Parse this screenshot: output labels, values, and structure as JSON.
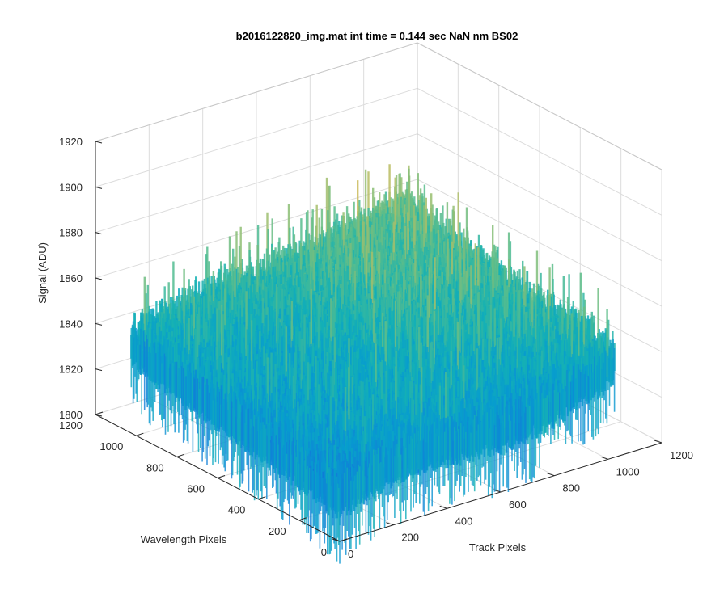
{
  "chart_data": {
    "type": "surface",
    "title": "b2016122820_img.mat int time = 0.144 sec  NaN nm BS02",
    "xlabel": "Track Pixels",
    "ylabel": "Wavelength Pixels",
    "zlabel": "Signal (ADU)",
    "xlim": [
      0,
      1200
    ],
    "ylim": [
      0,
      1200
    ],
    "zlim": [
      1800,
      1920
    ],
    "x_ticks": [
      0,
      200,
      400,
      600,
      800,
      1000,
      1200
    ],
    "y_ticks": [
      0,
      200,
      400,
      600,
      800,
      1000,
      1200
    ],
    "z_ticks": [
      1800,
      1820,
      1840,
      1860,
      1880,
      1900,
      1920
    ],
    "surface_extent": {
      "x": [
        0,
        1024
      ],
      "y": [
        0,
        1024
      ]
    },
    "signal_range": [
      1805,
      1910
    ],
    "signal_mean_at_origin": 1826,
    "signal_mean_at_far_corner": 1865,
    "grid": true,
    "colormap": "parula"
  }
}
